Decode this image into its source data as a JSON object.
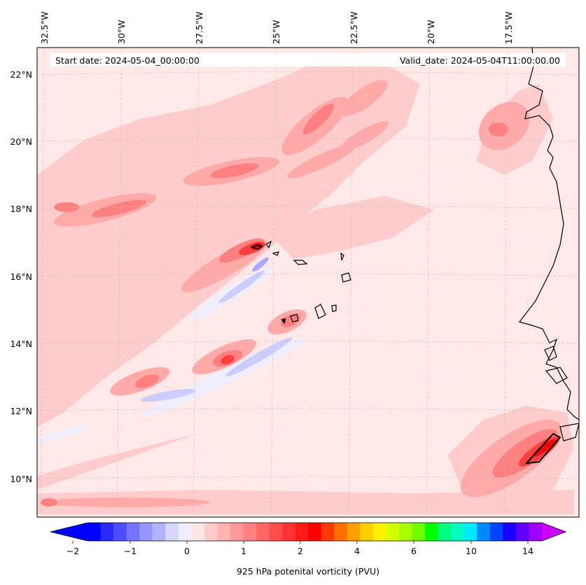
{
  "header": {
    "start_date": "Start date: 2024-05-04_00:00:00",
    "valid_date": "Valid_date: 2024-05-04T11:00:00.00"
  },
  "lon_ticks": [
    "32.5°W",
    "30°W",
    "27.5°W",
    "25°W",
    "22.5°W",
    "20°W",
    "17.5°W"
  ],
  "lat_ticks": [
    "22°N",
    "20°N",
    "18°N",
    "16°N",
    "14°N",
    "12°N",
    "10°N"
  ],
  "colorbar": {
    "label": "925 hPa potenital vorticity (PVU)",
    "tick_labels": [
      "−2",
      "−1",
      "0",
      "1",
      "2",
      "4",
      "6",
      "10",
      "14"
    ],
    "colors": [
      "#0000ff",
      "#2a2aff",
      "#4d4dff",
      "#7373ff",
      "#9696ff",
      "#b3b3ff",
      "#d6d6ff",
      "#eeeeff",
      "#ffe6e6",
      "#ffcccc",
      "#ffb3b3",
      "#ff9999",
      "#ff8080",
      "#ff6666",
      "#ff4d4d",
      "#ff3333",
      "#ff1a1a",
      "#ff0000",
      "#ff3a00",
      "#ff7000",
      "#ffa000",
      "#ffd000",
      "#fff000",
      "#d4ff00",
      "#a8ff00",
      "#70ff00",
      "#00ff00",
      "#00ff80",
      "#00ffc0",
      "#00e8ff",
      "#0088ff",
      "#0044ff",
      "#1a00ff",
      "#6000ff",
      "#a000ff"
    ],
    "under_color": "#0000ff",
    "over_color": "#cc00ff"
  },
  "map_colors": {
    "background": "#ffe8e8",
    "light_pink": "#ffcccc",
    "pink": "#ffaaaa",
    "salmon": "#ff8080",
    "red": "#ff4040",
    "dark_red": "#ff0000",
    "light_blue": "#eeeeff",
    "blue": "#ccccff",
    "medium_blue": "#a8a8ff",
    "coast": "#000000"
  }
}
